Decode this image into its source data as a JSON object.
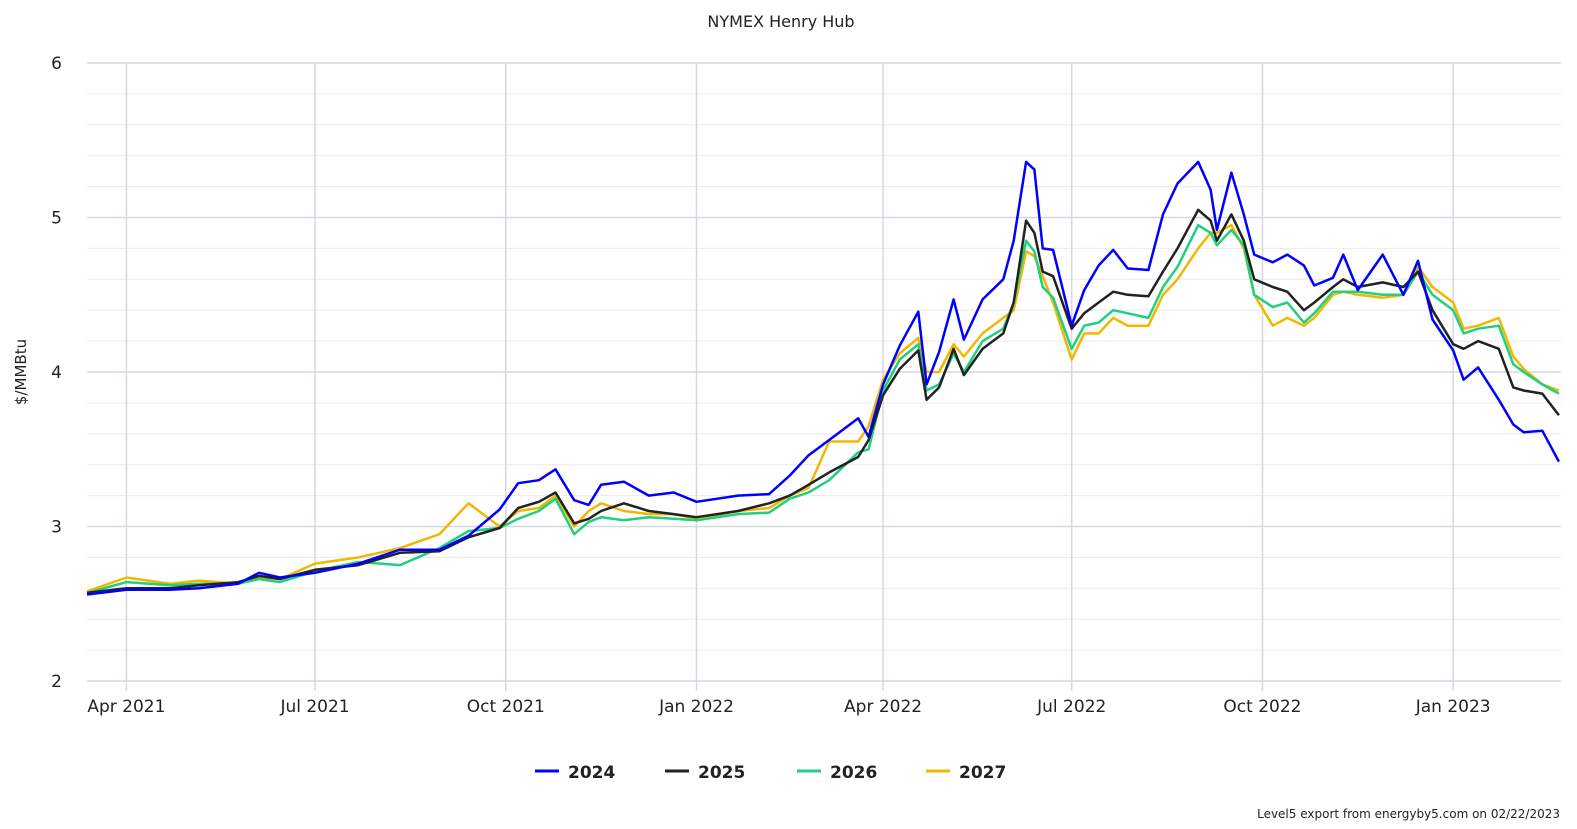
{
  "chart_data": {
    "type": "line",
    "title": "NYMEX Henry Hub",
    "xlabel": "",
    "ylabel": "$/MMBtu",
    "ylim": [
      2,
      6
    ],
    "xlim": [
      "2021-03-13",
      "2023-02-22"
    ],
    "y_ticks": [
      2,
      3,
      4,
      5,
      6
    ],
    "y_minor_step": 0.2,
    "x_ticks": [
      {
        "date": "2021-04-01",
        "label": "Apr 2021"
      },
      {
        "date": "2021-07-01",
        "label": "Jul 2021"
      },
      {
        "date": "2021-10-01",
        "label": "Oct 2021"
      },
      {
        "date": "2022-01-01",
        "label": "Jan 2022"
      },
      {
        "date": "2022-04-01",
        "label": "Apr 2022"
      },
      {
        "date": "2022-07-01",
        "label": "Jul 2022"
      },
      {
        "date": "2022-10-01",
        "label": "Oct 2022"
      },
      {
        "date": "2023-01-01",
        "label": "Jan 2023"
      }
    ],
    "grid": true,
    "legend_position": "bottom",
    "x": [
      "2021-03-13",
      "2021-04-01",
      "2021-04-22",
      "2021-05-06",
      "2021-05-25",
      "2021-06-04",
      "2021-06-14",
      "2021-07-01",
      "2021-07-22",
      "2021-08-11",
      "2021-08-30",
      "2021-09-13",
      "2021-09-28",
      "2021-10-07",
      "2021-10-17",
      "2021-10-25",
      "2021-11-03",
      "2021-11-10",
      "2021-11-16",
      "2021-11-27",
      "2021-12-09",
      "2021-12-21",
      "2022-01-01",
      "2022-01-21",
      "2022-02-05",
      "2022-02-15",
      "2022-02-24",
      "2022-03-06",
      "2022-03-20",
      "2022-03-25",
      "2022-04-01",
      "2022-04-09",
      "2022-04-18",
      "2022-04-22",
      "2022-04-28",
      "2022-05-05",
      "2022-05-10",
      "2022-05-19",
      "2022-05-29",
      "2022-06-03",
      "2022-06-09",
      "2022-06-13",
      "2022-06-17",
      "2022-06-22",
      "2022-07-01",
      "2022-07-07",
      "2022-07-14",
      "2022-07-21",
      "2022-07-28",
      "2022-08-07",
      "2022-08-14",
      "2022-08-21",
      "2022-08-31",
      "2022-09-06",
      "2022-09-09",
      "2022-09-16",
      "2022-09-22",
      "2022-09-27",
      "2022-10-06",
      "2022-10-13",
      "2022-10-21",
      "2022-10-26",
      "2022-11-04",
      "2022-11-09",
      "2022-11-16",
      "2022-11-28",
      "2022-12-08",
      "2022-12-15",
      "2022-12-22",
      "2023-01-01",
      "2023-01-06",
      "2023-01-13",
      "2023-01-23",
      "2023-01-30",
      "2023-02-04",
      "2023-02-13",
      "2023-02-21"
    ],
    "series": [
      {
        "name": "2024",
        "color": "#0000ff",
        "values": [
          2.56,
          2.59,
          2.59,
          2.6,
          2.63,
          2.7,
          2.67,
          2.7,
          2.76,
          2.85,
          2.85,
          2.94,
          3.11,
          3.28,
          3.3,
          3.37,
          3.17,
          3.14,
          3.27,
          3.29,
          3.2,
          3.22,
          3.16,
          3.2,
          3.21,
          3.33,
          3.46,
          3.56,
          3.7,
          3.58,
          3.92,
          4.17,
          4.39,
          3.92,
          4.13,
          4.47,
          4.21,
          4.47,
          4.6,
          4.85,
          5.36,
          5.31,
          4.8,
          4.79,
          4.3,
          4.53,
          4.69,
          4.79,
          4.67,
          4.66,
          5.02,
          5.22,
          5.36,
          5.18,
          4.92,
          5.29,
          5.02,
          4.76,
          4.71,
          4.76,
          4.69,
          4.56,
          4.61,
          4.76,
          4.53,
          4.76,
          4.5,
          4.72,
          4.34,
          4.14,
          3.95,
          4.03,
          3.82,
          3.66,
          3.61,
          3.62,
          3.42
        ]
      },
      {
        "name": "2025",
        "color": "#222222",
        "values": [
          2.57,
          2.6,
          2.6,
          2.62,
          2.64,
          2.68,
          2.66,
          2.72,
          2.75,
          2.83,
          2.84,
          2.93,
          2.99,
          3.12,
          3.16,
          3.22,
          3.02,
          3.05,
          3.1,
          3.15,
          3.1,
          3.08,
          3.06,
          3.1,
          3.15,
          3.2,
          3.27,
          3.35,
          3.45,
          3.56,
          3.85,
          4.02,
          4.14,
          3.82,
          3.9,
          4.15,
          3.98,
          4.15,
          4.25,
          4.45,
          4.98,
          4.9,
          4.65,
          4.62,
          4.28,
          4.38,
          4.45,
          4.52,
          4.5,
          4.49,
          4.65,
          4.8,
          5.05,
          4.98,
          4.85,
          5.02,
          4.85,
          4.6,
          4.55,
          4.52,
          4.4,
          4.45,
          4.55,
          4.6,
          4.55,
          4.58,
          4.55,
          4.65,
          4.4,
          4.18,
          4.15,
          4.2,
          4.15,
          3.9,
          3.88,
          3.86,
          3.72
        ]
      },
      {
        "name": "2026",
        "color": "#1fd17f",
        "values": [
          2.57,
          2.64,
          2.62,
          2.63,
          2.63,
          2.66,
          2.64,
          2.71,
          2.77,
          2.75,
          2.86,
          2.97,
          2.99,
          3.05,
          3.1,
          3.18,
          2.95,
          3.03,
          3.06,
          3.04,
          3.06,
          3.05,
          3.04,
          3.08,
          3.09,
          3.18,
          3.22,
          3.3,
          3.48,
          3.5,
          3.88,
          4.08,
          4.18,
          3.88,
          3.92,
          4.12,
          4.0,
          4.2,
          4.28,
          4.45,
          4.85,
          4.78,
          4.55,
          4.48,
          4.15,
          4.3,
          4.32,
          4.4,
          4.38,
          4.35,
          4.55,
          4.68,
          4.95,
          4.9,
          4.82,
          4.92,
          4.82,
          4.5,
          4.42,
          4.45,
          4.32,
          4.38,
          4.52,
          4.52,
          4.52,
          4.5,
          4.5,
          4.65,
          4.5,
          4.4,
          4.25,
          4.28,
          4.3,
          4.05,
          4.0,
          3.92,
          3.86
        ]
      },
      {
        "name": "2027",
        "color": "#f0b800",
        "values": [
          2.58,
          2.67,
          2.63,
          2.65,
          2.63,
          2.67,
          2.66,
          2.76,
          2.8,
          2.86,
          2.95,
          3.15,
          3.0,
          3.1,
          3.12,
          3.2,
          3.0,
          3.1,
          3.15,
          3.1,
          3.08,
          3.08,
          3.05,
          3.1,
          3.12,
          3.2,
          3.25,
          3.55,
          3.55,
          3.65,
          3.95,
          4.12,
          4.22,
          4.0,
          4.0,
          4.18,
          4.1,
          4.25,
          4.35,
          4.4,
          4.78,
          4.75,
          4.62,
          4.45,
          4.08,
          4.25,
          4.25,
          4.35,
          4.3,
          4.3,
          4.5,
          4.6,
          4.8,
          4.9,
          4.9,
          4.95,
          4.8,
          4.5,
          4.3,
          4.35,
          4.3,
          4.35,
          4.5,
          4.52,
          4.5,
          4.48,
          4.5,
          4.68,
          4.55,
          4.45,
          4.28,
          4.3,
          4.35,
          4.1,
          4.02,
          3.92,
          3.88
        ]
      }
    ]
  },
  "footer": {
    "credit": "Level5 export from energyby5.com on 02/22/2023"
  }
}
